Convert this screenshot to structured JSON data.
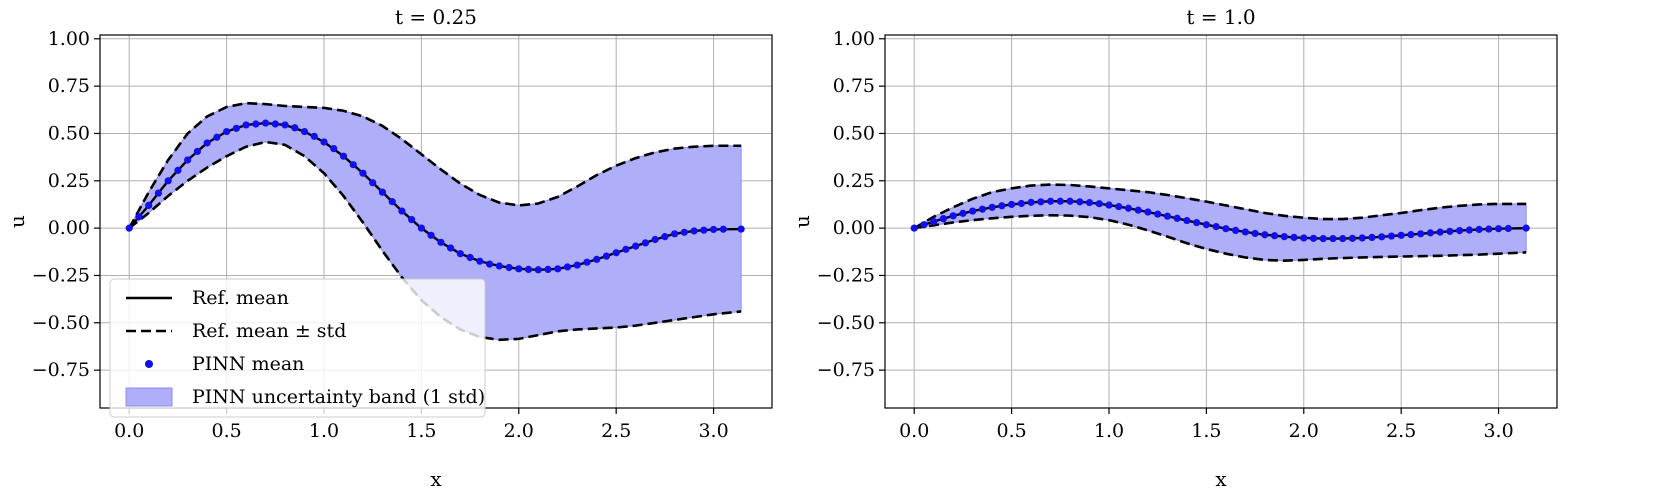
{
  "colors": {
    "band_fill": "#aeaef9",
    "band_edge": "#8c8cf2",
    "pinn_marker": "#1010ee",
    "reference_line": "#000000",
    "grid": "#b0b0b0"
  },
  "legend": {
    "placement": "lower-left of first panel",
    "items": [
      {
        "kind": "solid",
        "label": "Ref. mean"
      },
      {
        "kind": "dashed",
        "label": "Ref. mean ± std"
      },
      {
        "kind": "marker",
        "label": "PINN mean"
      },
      {
        "kind": "band",
        "label": "PINN uncertainty band (1 std)"
      }
    ]
  },
  "chart_data": [
    {
      "type": "line",
      "title": "t = 0.25",
      "xlabel": "x",
      "ylabel": "u",
      "xlim": [
        -0.15,
        3.3
      ],
      "ylim": [
        -0.95,
        1.02
      ],
      "grid": true,
      "xticks": [
        0.0,
        0.5,
        1.0,
        1.5,
        2.0,
        2.5,
        3.0
      ],
      "xtick_labels": [
        "0.0",
        "0.5",
        "1.0",
        "1.5",
        "2.0",
        "2.5",
        "3.0"
      ],
      "yticks": [
        1.0,
        0.75,
        0.5,
        0.25,
        0.0,
        -0.25,
        -0.5,
        -0.75
      ],
      "ytick_labels": [
        "1.00",
        "0.75",
        "0.50",
        "0.25",
        "0.00",
        "−0.25",
        "−0.50",
        "−0.75"
      ],
      "x": [
        0.0,
        0.1,
        0.2,
        0.3,
        0.4,
        0.5,
        0.6,
        0.7,
        0.8,
        0.9,
        1.0,
        1.1,
        1.2,
        1.3,
        1.4,
        1.5,
        1.6,
        1.7,
        1.8,
        1.9,
        2.0,
        2.1,
        2.2,
        2.3,
        2.4,
        2.5,
        2.6,
        2.7,
        2.8,
        2.9,
        3.0,
        3.1416
      ],
      "series": [
        {
          "role": "upper",
          "values": [
            0.0,
            0.19,
            0.36,
            0.5,
            0.59,
            0.64,
            0.66,
            0.655,
            0.645,
            0.64,
            0.635,
            0.62,
            0.59,
            0.54,
            0.47,
            0.39,
            0.31,
            0.235,
            0.175,
            0.135,
            0.12,
            0.13,
            0.165,
            0.22,
            0.28,
            0.33,
            0.37,
            0.4,
            0.42,
            0.43,
            0.435,
            0.435
          ]
        },
        {
          "role": "mean",
          "values": [
            0.0,
            0.12,
            0.25,
            0.36,
            0.45,
            0.51,
            0.545,
            0.555,
            0.545,
            0.51,
            0.455,
            0.38,
            0.29,
            0.19,
            0.09,
            0.0,
            -0.075,
            -0.135,
            -0.175,
            -0.2,
            -0.215,
            -0.22,
            -0.215,
            -0.195,
            -0.165,
            -0.13,
            -0.095,
            -0.06,
            -0.03,
            -0.015,
            -0.007,
            -0.005
          ]
        },
        {
          "role": "lower",
          "values": [
            0.0,
            0.08,
            0.17,
            0.25,
            0.32,
            0.38,
            0.43,
            0.455,
            0.44,
            0.38,
            0.29,
            0.17,
            0.03,
            -0.12,
            -0.26,
            -0.38,
            -0.47,
            -0.535,
            -0.575,
            -0.59,
            -0.585,
            -0.565,
            -0.545,
            -0.535,
            -0.53,
            -0.525,
            -0.515,
            -0.5,
            -0.485,
            -0.47,
            -0.455,
            -0.44
          ]
        }
      ],
      "pinn_mean": {
        "x": [
          0.0,
          0.05,
          0.1,
          0.15,
          0.2,
          0.25,
          0.3,
          0.35,
          0.4,
          0.45,
          0.5,
          0.55,
          0.6,
          0.65,
          0.7,
          0.75,
          0.8,
          0.85,
          0.9,
          0.95,
          1.0,
          1.05,
          1.1,
          1.15,
          1.2,
          1.25,
          1.3,
          1.35,
          1.4,
          1.45,
          1.5,
          1.55,
          1.6,
          1.65,
          1.7,
          1.75,
          1.8,
          1.85,
          1.9,
          1.95,
          2.0,
          2.05,
          2.1,
          2.15,
          2.2,
          2.25,
          2.3,
          2.35,
          2.4,
          2.45,
          2.5,
          2.55,
          2.6,
          2.65,
          2.7,
          2.75,
          2.8,
          2.85,
          2.9,
          2.95,
          3.0,
          3.05,
          3.1416
        ],
        "values": [
          0.0,
          0.06,
          0.12,
          0.185,
          0.25,
          0.305,
          0.36,
          0.405,
          0.45,
          0.48,
          0.51,
          0.527,
          0.545,
          0.55,
          0.555,
          0.55,
          0.545,
          0.53,
          0.51,
          0.485,
          0.455,
          0.42,
          0.38,
          0.335,
          0.29,
          0.24,
          0.19,
          0.14,
          0.09,
          0.045,
          0.0,
          -0.038,
          -0.075,
          -0.105,
          -0.135,
          -0.155,
          -0.175,
          -0.19,
          -0.2,
          -0.208,
          -0.215,
          -0.218,
          -0.22,
          -0.218,
          -0.215,
          -0.205,
          -0.195,
          -0.18,
          -0.165,
          -0.148,
          -0.13,
          -0.112,
          -0.095,
          -0.078,
          -0.06,
          -0.045,
          -0.03,
          -0.022,
          -0.015,
          -0.011,
          -0.007,
          -0.006,
          -0.005
        ]
      }
    },
    {
      "type": "line",
      "title": "t = 1.0",
      "xlabel": "x",
      "ylabel": "u",
      "xlim": [
        -0.15,
        3.3
      ],
      "ylim": [
        -0.95,
        1.02
      ],
      "grid": true,
      "xticks": [
        0.0,
        0.5,
        1.0,
        1.5,
        2.0,
        2.5,
        3.0
      ],
      "xtick_labels": [
        "0.0",
        "0.5",
        "1.0",
        "1.5",
        "2.0",
        "2.5",
        "3.0"
      ],
      "yticks": [
        1.0,
        0.75,
        0.5,
        0.25,
        0.0,
        -0.25,
        -0.5,
        -0.75
      ],
      "ytick_labels": [
        "1.00",
        "0.75",
        "0.50",
        "0.25",
        "0.00",
        "−0.25",
        "−0.50",
        "−0.75"
      ],
      "x": [
        0.0,
        0.1,
        0.2,
        0.3,
        0.4,
        0.5,
        0.6,
        0.7,
        0.8,
        0.9,
        1.0,
        1.1,
        1.2,
        1.3,
        1.4,
        1.5,
        1.6,
        1.7,
        1.8,
        1.9,
        2.0,
        2.1,
        2.2,
        2.3,
        2.4,
        2.5,
        2.6,
        2.7,
        2.8,
        2.9,
        3.0,
        3.1416
      ],
      "series": [
        {
          "role": "upper",
          "values": [
            0.0,
            0.06,
            0.11,
            0.155,
            0.19,
            0.21,
            0.225,
            0.23,
            0.228,
            0.22,
            0.21,
            0.2,
            0.19,
            0.175,
            0.158,
            0.14,
            0.12,
            0.1,
            0.08,
            0.065,
            0.055,
            0.048,
            0.048,
            0.055,
            0.068,
            0.08,
            0.095,
            0.108,
            0.118,
            0.125,
            0.128,
            0.128
          ]
        },
        {
          "role": "mean",
          "values": [
            0.0,
            0.035,
            0.065,
            0.09,
            0.11,
            0.125,
            0.136,
            0.142,
            0.142,
            0.135,
            0.122,
            0.105,
            0.085,
            0.063,
            0.04,
            0.018,
            -0.003,
            -0.02,
            -0.035,
            -0.045,
            -0.052,
            -0.055,
            -0.055,
            -0.052,
            -0.046,
            -0.038,
            -0.03,
            -0.021,
            -0.013,
            -0.007,
            -0.003,
            0.0
          ]
        },
        {
          "role": "lower",
          "values": [
            0.0,
            0.015,
            0.03,
            0.042,
            0.052,
            0.06,
            0.065,
            0.068,
            0.066,
            0.058,
            0.042,
            0.018,
            -0.012,
            -0.045,
            -0.08,
            -0.11,
            -0.135,
            -0.155,
            -0.168,
            -0.172,
            -0.168,
            -0.162,
            -0.158,
            -0.155,
            -0.152,
            -0.15,
            -0.148,
            -0.146,
            -0.143,
            -0.14,
            -0.135,
            -0.128
          ]
        }
      ],
      "pinn_mean": {
        "x": [
          0.0,
          0.05,
          0.1,
          0.15,
          0.2,
          0.25,
          0.3,
          0.35,
          0.4,
          0.45,
          0.5,
          0.55,
          0.6,
          0.65,
          0.7,
          0.75,
          0.8,
          0.85,
          0.9,
          0.95,
          1.0,
          1.05,
          1.1,
          1.15,
          1.2,
          1.25,
          1.3,
          1.35,
          1.4,
          1.45,
          1.5,
          1.55,
          1.6,
          1.65,
          1.7,
          1.75,
          1.8,
          1.85,
          1.9,
          1.95,
          2.0,
          2.05,
          2.1,
          2.15,
          2.2,
          2.25,
          2.3,
          2.35,
          2.4,
          2.45,
          2.5,
          2.55,
          2.6,
          2.65,
          2.7,
          2.75,
          2.8,
          2.85,
          2.9,
          2.95,
          3.0,
          3.05,
          3.1416
        ],
        "values": [
          0.0,
          0.018,
          0.035,
          0.05,
          0.065,
          0.078,
          0.09,
          0.1,
          0.11,
          0.118,
          0.125,
          0.13,
          0.136,
          0.139,
          0.142,
          0.142,
          0.142,
          0.139,
          0.135,
          0.129,
          0.122,
          0.114,
          0.105,
          0.095,
          0.085,
          0.074,
          0.063,
          0.052,
          0.04,
          0.029,
          0.018,
          0.008,
          -0.003,
          -0.012,
          -0.02,
          -0.028,
          -0.035,
          -0.04,
          -0.045,
          -0.049,
          -0.052,
          -0.054,
          -0.055,
          -0.055,
          -0.055,
          -0.054,
          -0.052,
          -0.049,
          -0.046,
          -0.042,
          -0.038,
          -0.034,
          -0.03,
          -0.025,
          -0.021,
          -0.017,
          -0.013,
          -0.01,
          -0.007,
          -0.005,
          -0.003,
          -0.002,
          0.0
        ]
      }
    }
  ]
}
